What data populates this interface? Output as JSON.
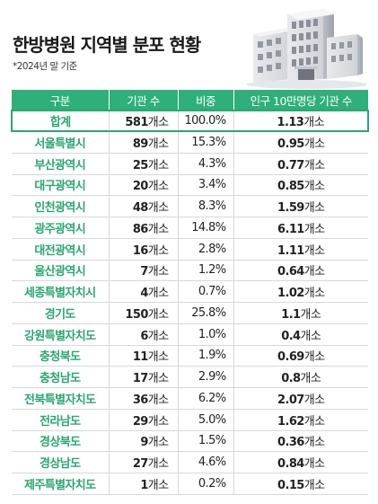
{
  "title": "한방병원 지역별 분포 현황",
  "subtitle": "*2024년 말 기준",
  "table": {
    "headers": [
      "구분",
      "기관 수",
      "비중",
      "인구 10만명당 기관 수"
    ],
    "rows": [
      {
        "region": "합계",
        "count": "581",
        "unit": "개소",
        "share": "100.0%",
        "per_num": "1.13",
        "per_unit": "개소"
      },
      {
        "region": "서울특별시",
        "count": "89",
        "unit": "개소",
        "share": "15.3%",
        "per_num": "0.95",
        "per_unit": "개소"
      },
      {
        "region": "부산광역시",
        "count": "25",
        "unit": "개소",
        "share": "4.3%",
        "per_num": "0.77",
        "per_unit": "개소"
      },
      {
        "region": "대구광역시",
        "count": "20",
        "unit": "개소",
        "share": "3.4%",
        "per_num": "0.85",
        "per_unit": "개소"
      },
      {
        "region": "인천광역시",
        "count": "48",
        "unit": "개소",
        "share": "8.3%",
        "per_num": "1.59",
        "per_unit": "개소"
      },
      {
        "region": "광주광역시",
        "count": "86",
        "unit": "개소",
        "share": "14.8%",
        "per_num": "6.11",
        "per_unit": "개소"
      },
      {
        "region": "대전광역시",
        "count": "16",
        "unit": "개소",
        "share": "2.8%",
        "per_num": "1.11",
        "per_unit": "개소"
      },
      {
        "region": "울산광역시",
        "count": "7",
        "unit": "개소",
        "share": "1.2%",
        "per_num": "0.64",
        "per_unit": "개소"
      },
      {
        "region": "세종특별자치시",
        "count": "4",
        "unit": "개소",
        "share": "0.7%",
        "per_num": "1.02",
        "per_unit": "개소"
      },
      {
        "region": "경기도",
        "count": "150",
        "unit": "개소",
        "share": "25.8%",
        "per_num": "1.1",
        "per_unit": "개소"
      },
      {
        "region": "강원특별자치도",
        "count": "6",
        "unit": "개소",
        "share": "1.0%",
        "per_num": "0.4",
        "per_unit": "개소"
      },
      {
        "region": "충청북도",
        "count": "11",
        "unit": "개소",
        "share": "1.9%",
        "per_num": "0.69",
        "per_unit": "개소"
      },
      {
        "region": "충청남도",
        "count": "17",
        "unit": "개소",
        "share": "2.9%",
        "per_num": "0.8",
        "per_unit": "개소"
      },
      {
        "region": "전북특별자치도",
        "count": "36",
        "unit": "개소",
        "share": "6.2%",
        "per_num": "2.07",
        "per_unit": "개소"
      },
      {
        "region": "전라남도",
        "count": "29",
        "unit": "개소",
        "share": "5.0%",
        "per_num": "1.62",
        "per_unit": "개소"
      },
      {
        "region": "경상북도",
        "count": "9",
        "unit": "개소",
        "share": "1.5%",
        "per_num": "0.36",
        "per_unit": "개소"
      },
      {
        "region": "경상남도",
        "count": "27",
        "unit": "개소",
        "share": "4.6%",
        "per_num": "0.84",
        "per_unit": "개소"
      },
      {
        "region": "제주특별자치도",
        "count": "1",
        "unit": "개소",
        "share": "0.2%",
        "per_num": "0.15",
        "per_unit": "개소"
      }
    ]
  },
  "colors": {
    "accent": "#2fb07a",
    "region_text": "#2aa672"
  },
  "icons": [
    "hospital-building-illustration"
  ]
}
